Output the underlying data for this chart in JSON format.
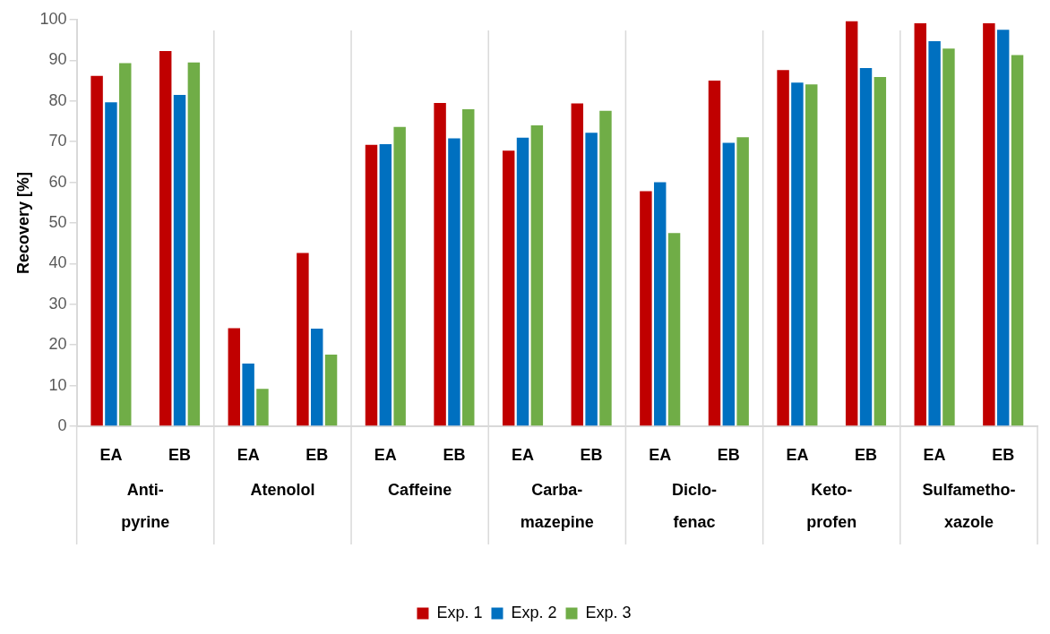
{
  "chart_data": {
    "type": "bar",
    "ylabel": "Recovery [%]",
    "categories": [
      "EA",
      "EB",
      "EA",
      "EB",
      "EA",
      "EB",
      "EA",
      "EB",
      "EA",
      "EB",
      "EA",
      "EB",
      "EA",
      "EB"
    ],
    "series": [
      {
        "name": "Exp. 1",
        "color": "#c00000",
        "values": [
          86.2,
          92.3,
          24.1,
          42.6,
          69.2,
          79.5,
          67.8,
          79.4,
          57.8,
          85.0,
          87.6,
          99.6,
          99.1,
          99.1
        ]
      },
      {
        "name": "Exp. 2",
        "color": "#0070c0",
        "values": [
          79.7,
          81.5,
          15.4,
          24.0,
          69.4,
          70.8,
          71.0,
          72.2,
          60.0,
          69.7,
          84.5,
          88.1,
          94.7,
          97.5
        ]
      },
      {
        "name": "Exp. 3",
        "color": "#70ad47",
        "values": [
          89.3,
          89.5,
          9.2,
          17.6,
          73.6,
          78.0,
          74.0,
          77.6,
          47.5,
          71.1,
          84.1,
          85.9,
          92.9,
          91.3
        ]
      }
    ],
    "annotations": [
      "Anti-pyrine",
      "Atenolol",
      "Caffeine",
      "Carba-mazepine",
      "Diclo-fenac",
      "Keto-profen",
      "Sulfametho-xazole"
    ],
    "ylim": [
      0,
      100
    ],
    "yticks": [
      0,
      10,
      20,
      30,
      40,
      50,
      60,
      70,
      80,
      90,
      100
    ],
    "grid": false,
    "legend": "bottom"
  }
}
